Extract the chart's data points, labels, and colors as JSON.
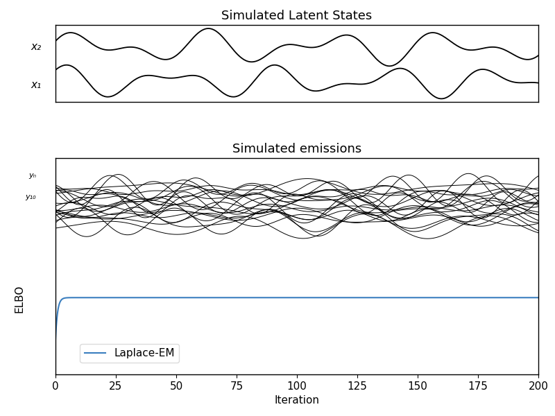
{
  "title_top": "Simulated Latent States",
  "title_mid": "Simulated emissions",
  "xlabel": "Iteration",
  "ylabel_bottom": "ELBO",
  "ylabel_top_labels": [
    "x₂",
    "x₁"
  ],
  "ylabel_emissions_labels": [
    "yₙ",
    "y₁₀"
  ],
  "legend_label": "Laplace-EM",
  "x_ticks": [
    0,
    25,
    50,
    75,
    100,
    125,
    150,
    175,
    200
  ],
  "x_lim": [
    0,
    200
  ],
  "n_time": 200,
  "n_emissions": 20,
  "line_color_latent": "#000000",
  "line_color_emissions": "#000000",
  "line_color_elbo": "#3a7ebf",
  "background_color": "#ffffff",
  "title_fontsize": 13,
  "label_fontsize": 11,
  "tick_fontsize": 11
}
